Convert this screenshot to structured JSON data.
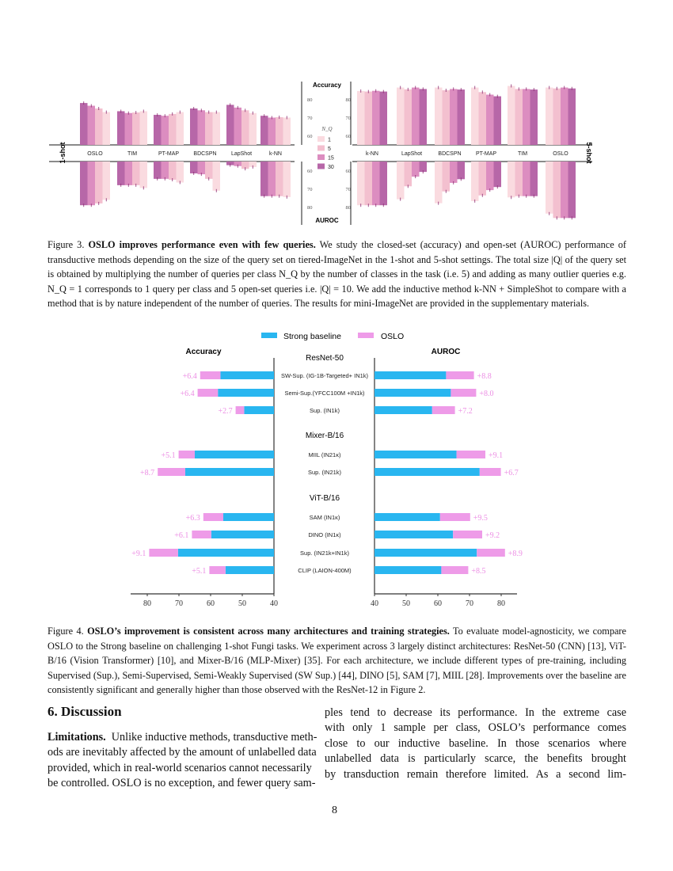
{
  "figure3": {
    "caption_label": "Figure 3.",
    "caption_title": "OSLO improves performance even with few queries.",
    "caption_body": "We study the closed-set (accuracy) and open-set (AUROC) performance of transductive methods depending on the size of the query set on tiered-ImageNet in the 1-shot and 5-shot settings. The total size |Q| of the query set is obtained by multiplying the number of queries per class N_Q by the number of classes in the task (i.e. 5) and adding as many outlier queries e.g. N_Q = 1 corresponds to 1 query per class and 5 open-set queries i.e. |Q| = 10. We add the inductive method k-NN + SimpleShot to compare with a method that is by nature independent of the number of queries. The results for mini-ImageNet are provided in the supplementary materials."
  },
  "figure4": {
    "caption_label": "Figure 4.",
    "caption_title": "OSLO’s improvement is consistent across many architectures and training strategies.",
    "caption_body": "To evaluate model-agnosticity, we compare OSLO to the Strong baseline on challenging 1-shot Fungi tasks. We experiment across 3 largely distinct architectures: ResNet-50 (CNN) [13], ViT-B/16 (Vision Transformer) [10], and Mixer-B/16 (MLP-Mixer) [35]. For each architecture, we include different types of pre-training, including Supervised (Sup.), Semi-Supervised, Semi-Weakly Supervised (SW Sup.) [44], DINO [5], SAM [7], MIIL [28]. Improvements over the baseline are consistently significant and generally higher than those observed with the ResNet-12 in Figure 2."
  },
  "section": {
    "heading": "6. Discussion",
    "left_lead": "Limitations.",
    "left_lines": [
      "Unlike inductive methods, transductive meth-",
      "ods are inevitably affected by the amount of unlabelled data",
      "provided, which in real-world scenarios cannot necessarily",
      "be controlled. OSLO is no exception, and fewer query sam-"
    ],
    "right_lines": [
      "ples tend to decrease its performance. In the extreme case",
      "with only 1 sample per class, OSLO’s performance comes",
      "close to our inductive baseline. In those scenarios where",
      "unlabelled data is particularly scarce, the benefits brought",
      "by transduction remain therefore limited. As a second lim-"
    ]
  },
  "page_number": "8",
  "chart_data": [
    {
      "type": "bar",
      "panel": "1-shot",
      "top_label": "Accuracy",
      "bottom_label": "AUROC",
      "legend_title": "N_Q",
      "legend": [
        "1",
        "5",
        "15",
        "30"
      ],
      "colors": {
        "1": "#fadbe0",
        "5": "#f3c0cf",
        "15": "#dc8dc0",
        "30": "#b767a8"
      },
      "bar_order": [
        "30",
        "15",
        "5",
        "1"
      ],
      "categories": [
        "OSLO",
        "TIM",
        "PT-MAP",
        "BDCSPN",
        "LapShot",
        "k-NN"
      ],
      "accuracy_ticks": [
        "60",
        "70",
        "80"
      ],
      "auroc_ticks": [
        "60",
        "70",
        "80"
      ],
      "accuracy": {
        "30": [
          78,
          73.5,
          71.5,
          75,
          77,
          71
        ],
        "15": [
          76.5,
          72.5,
          71,
          74,
          75.5,
          70
        ],
        "5": [
          75,
          72.8,
          72,
          73,
          74,
          70.2
        ],
        "1": [
          73,
          73.5,
          73,
          73,
          72.5,
          70
        ]
      },
      "auroc": {
        "30": [
          79,
          68,
          64.5,
          61.5,
          57,
          74
        ],
        "15": [
          79,
          68,
          64.5,
          62,
          57.5,
          74
        ],
        "5": [
          78,
          68,
          65,
          64.5,
          59,
          74
        ],
        "1": [
          76,
          69.5,
          66.5,
          71,
          58,
          74.5
        ]
      },
      "ylim": [
        55,
        85
      ]
    },
    {
      "type": "bar",
      "panel": "5-shot",
      "top_label": "Accuracy",
      "bottom_label": "AUROC",
      "bar_order": [
        "1",
        "5",
        "15",
        "30"
      ],
      "categories": [
        "k-NN",
        "LapShot",
        "BDCSPN",
        "PT-MAP",
        "TIM",
        "OSLO"
      ],
      "accuracy_ticks": [
        "60",
        "70",
        "80"
      ],
      "auroc_ticks": [
        "60",
        "70",
        "80"
      ],
      "accuracy": {
        "1": [
          84.6,
          86.5,
          86.5,
          86.5,
          87.4,
          86.5
        ],
        "5": [
          84.3,
          85.5,
          85,
          84,
          85.7,
          86
        ],
        "15": [
          84.7,
          86.5,
          85.7,
          82.6,
          85.7,
          86.5
        ],
        "30": [
          84.3,
          85.7,
          85.4,
          81.7,
          85.4,
          86
        ]
      },
      "auroc": {
        "1": [
          79,
          75.7,
          77.9,
          76.7,
          74.7,
          83.6
        ],
        "5": [
          79,
          68.6,
          71.4,
          73.6,
          74,
          86
        ],
        "15": [
          79,
          63.3,
          66.7,
          70.7,
          74,
          86
        ],
        "30": [
          79,
          60.7,
          64.7,
          69,
          74,
          86
        ]
      },
      "ylim": [
        55,
        88
      ]
    },
    {
      "type": "bar",
      "orientation": "horizontal",
      "legend": [
        "Strong baseline",
        "OSLO"
      ],
      "colors": {
        "Strong baseline": "#29b6f0",
        "OSLO": "#ee9be8",
        "gain_text": "#ec8fe4"
      },
      "left_title": "Accuracy",
      "right_title": "AUROC",
      "groups": [
        {
          "name": "ResNet-50",
          "rows": [
            {
              "label": "SW-Sup. (IG-1B-Targeted+ IN1k)",
              "acc_baseline": 56.9,
              "acc_gain": "+6.4",
              "auroc_baseline": 62.6,
              "auroc_gain": "+8.8"
            },
            {
              "label": "Semi-Sup.(YFCC100M +IN1k)",
              "acc_baseline": 57.7,
              "acc_gain": "+6.4",
              "auroc_baseline": 64.1,
              "auroc_gain": "+8.0"
            },
            {
              "label": "Sup. (IN1k)",
              "acc_baseline": 49.4,
              "acc_gain": "+2.7",
              "auroc_baseline": 58.2,
              "auroc_gain": "+7.2"
            }
          ]
        },
        {
          "name": "Mixer-B/16",
          "rows": [
            {
              "label": "MIIL (IN21κ)",
              "acc_baseline": 65.0,
              "acc_gain": "+5.1",
              "auroc_baseline": 65.9,
              "auroc_gain": "+9.1"
            },
            {
              "label": "Sup. (IN21k)",
              "acc_baseline": 68.0,
              "acc_gain": "+8.7",
              "auroc_baseline": 73.2,
              "auroc_gain": "+6.7"
            }
          ]
        },
        {
          "name": "ViT-B/16",
          "rows": [
            {
              "label": "SAM (IN1κ)",
              "acc_baseline": 56.0,
              "acc_gain": "+6.3",
              "auroc_baseline": 60.7,
              "auroc_gain": "+9.5"
            },
            {
              "label": "DINO (IN1κ)",
              "acc_baseline": 59.8,
              "acc_gain": "+6.1",
              "auroc_baseline": 64.8,
              "auroc_gain": "+9.2"
            },
            {
              "label": "Sup. (IN21k+IN1k)",
              "acc_baseline": 70.3,
              "acc_gain": "+9.1",
              "auroc_baseline": 72.3,
              "auroc_gain": "+8.9"
            },
            {
              "label": "CLIP (LAION-400M)",
              "acc_baseline": 55.3,
              "acc_gain": "+5.1",
              "auroc_baseline": 61.1,
              "auroc_gain": "+8.5"
            }
          ]
        }
      ],
      "xlim": [
        40,
        80
      ],
      "ticks": [
        "40",
        "50",
        "60",
        "70",
        "80"
      ]
    }
  ]
}
